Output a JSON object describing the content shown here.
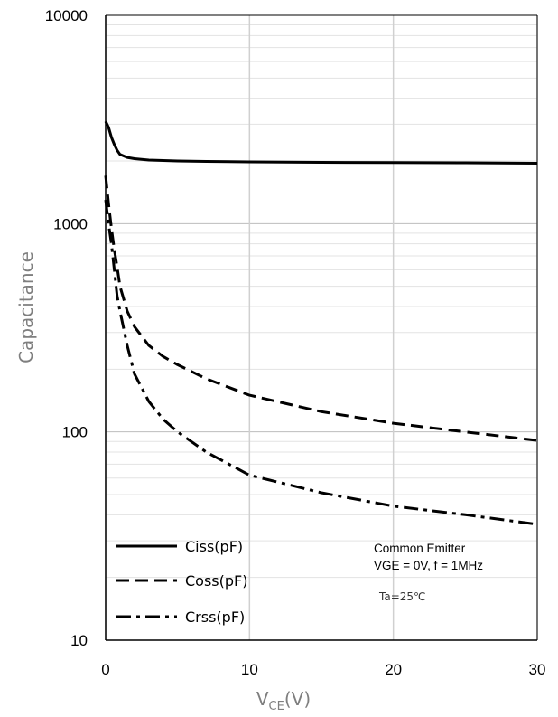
{
  "chart_data": {
    "type": "line",
    "title": "",
    "xlabel_main": "V",
    "xlabel_sub": "CE",
    "xlabel_unit": "(V)",
    "ylabel": "Capacitance",
    "xlim": [
      0,
      30
    ],
    "ylim": [
      10,
      10000
    ],
    "yscale": "log",
    "x_ticks": [
      "0",
      "10",
      "20",
      "30"
    ],
    "y_ticks": [
      "10",
      "100",
      "1000",
      "10000"
    ],
    "grid": true,
    "legend_position": "bottom-left",
    "series": [
      {
        "name": "Ciss(pF)",
        "style": "solid",
        "x": [
          0,
          0.2,
          0.4,
          0.6,
          0.8,
          1.0,
          1.5,
          2,
          3,
          5,
          7,
          10,
          15,
          20,
          25,
          30
        ],
        "y": [
          3100,
          2900,
          2600,
          2400,
          2250,
          2150,
          2080,
          2050,
          2020,
          2000,
          1990,
          1980,
          1970,
          1965,
          1960,
          1950
        ]
      },
      {
        "name": "Coss(pF)",
        "style": "dashed",
        "x": [
          0,
          0.2,
          0.4,
          0.6,
          0.8,
          1.0,
          1.5,
          2,
          3,
          4,
          5,
          7,
          10,
          15,
          20,
          25,
          30
        ],
        "y": [
          1700,
          1250,
          950,
          750,
          620,
          500,
          380,
          320,
          260,
          230,
          210,
          180,
          150,
          125,
          110,
          100,
          91
        ]
      },
      {
        "name": "Crss(pF)",
        "style": "dashdot",
        "x": [
          0,
          0.2,
          0.4,
          0.6,
          0.8,
          1.0,
          1.5,
          2,
          3,
          4,
          5,
          7,
          10,
          15,
          20,
          25,
          30
        ],
        "y": [
          1300,
          1000,
          800,
          600,
          450,
          380,
          260,
          190,
          140,
          115,
          100,
          80,
          62,
          51,
          44,
          40,
          36
        ]
      }
    ],
    "annotations": [
      "Common Emitter",
      "VGE = 0V, f = 1MHz",
      "Ta=25℃"
    ]
  }
}
